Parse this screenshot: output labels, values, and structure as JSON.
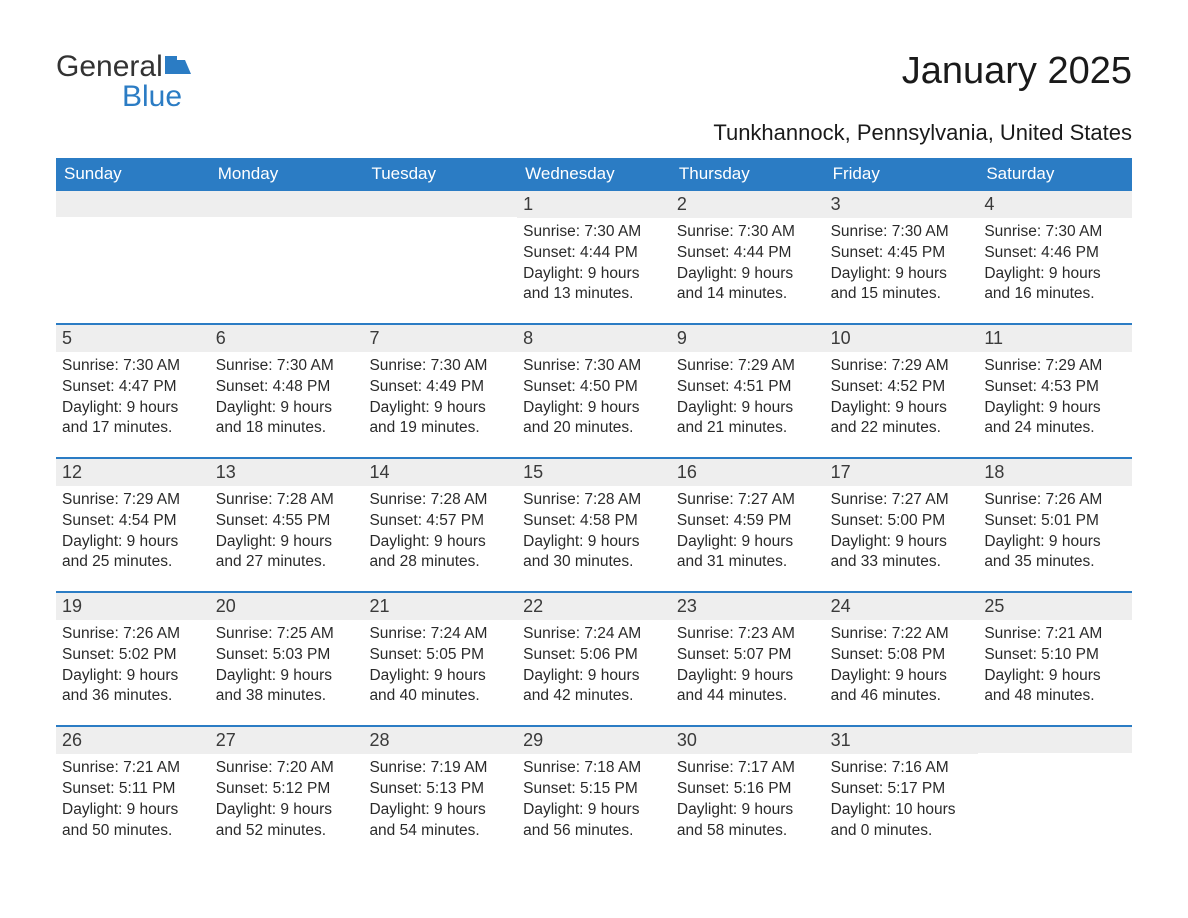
{
  "brand": {
    "part1": "General",
    "part2": "Blue"
  },
  "title": "January 2025",
  "subtitle": "Tunkhannock, Pennsylvania, United States",
  "colors": {
    "accent": "#2b7cc4",
    "header_text": "#ffffff",
    "daynum_bg": "#eeeeee",
    "text": "#2a2a2a",
    "background": "#ffffff"
  },
  "typography": {
    "title_fontsize": 38,
    "subtitle_fontsize": 22,
    "header_fontsize": 17,
    "daynum_fontsize": 18,
    "body_fontsize": 15.5
  },
  "calendar": {
    "type": "calendar-grid",
    "columns": 7,
    "day_names": [
      "Sunday",
      "Monday",
      "Tuesday",
      "Wednesday",
      "Thursday",
      "Friday",
      "Saturday"
    ],
    "weeks": [
      [
        {
          "day": "",
          "sunrise": "",
          "sunset": "",
          "daylight1": "",
          "daylight2": ""
        },
        {
          "day": "",
          "sunrise": "",
          "sunset": "",
          "daylight1": "",
          "daylight2": ""
        },
        {
          "day": "",
          "sunrise": "",
          "sunset": "",
          "daylight1": "",
          "daylight2": ""
        },
        {
          "day": "1",
          "sunrise": "Sunrise: 7:30 AM",
          "sunset": "Sunset: 4:44 PM",
          "daylight1": "Daylight: 9 hours",
          "daylight2": "and 13 minutes."
        },
        {
          "day": "2",
          "sunrise": "Sunrise: 7:30 AM",
          "sunset": "Sunset: 4:44 PM",
          "daylight1": "Daylight: 9 hours",
          "daylight2": "and 14 minutes."
        },
        {
          "day": "3",
          "sunrise": "Sunrise: 7:30 AM",
          "sunset": "Sunset: 4:45 PM",
          "daylight1": "Daylight: 9 hours",
          "daylight2": "and 15 minutes."
        },
        {
          "day": "4",
          "sunrise": "Sunrise: 7:30 AM",
          "sunset": "Sunset: 4:46 PM",
          "daylight1": "Daylight: 9 hours",
          "daylight2": "and 16 minutes."
        }
      ],
      [
        {
          "day": "5",
          "sunrise": "Sunrise: 7:30 AM",
          "sunset": "Sunset: 4:47 PM",
          "daylight1": "Daylight: 9 hours",
          "daylight2": "and 17 minutes."
        },
        {
          "day": "6",
          "sunrise": "Sunrise: 7:30 AM",
          "sunset": "Sunset: 4:48 PM",
          "daylight1": "Daylight: 9 hours",
          "daylight2": "and 18 minutes."
        },
        {
          "day": "7",
          "sunrise": "Sunrise: 7:30 AM",
          "sunset": "Sunset: 4:49 PM",
          "daylight1": "Daylight: 9 hours",
          "daylight2": "and 19 minutes."
        },
        {
          "day": "8",
          "sunrise": "Sunrise: 7:30 AM",
          "sunset": "Sunset: 4:50 PM",
          "daylight1": "Daylight: 9 hours",
          "daylight2": "and 20 minutes."
        },
        {
          "day": "9",
          "sunrise": "Sunrise: 7:29 AM",
          "sunset": "Sunset: 4:51 PM",
          "daylight1": "Daylight: 9 hours",
          "daylight2": "and 21 minutes."
        },
        {
          "day": "10",
          "sunrise": "Sunrise: 7:29 AM",
          "sunset": "Sunset: 4:52 PM",
          "daylight1": "Daylight: 9 hours",
          "daylight2": "and 22 minutes."
        },
        {
          "day": "11",
          "sunrise": "Sunrise: 7:29 AM",
          "sunset": "Sunset: 4:53 PM",
          "daylight1": "Daylight: 9 hours",
          "daylight2": "and 24 minutes."
        }
      ],
      [
        {
          "day": "12",
          "sunrise": "Sunrise: 7:29 AM",
          "sunset": "Sunset: 4:54 PM",
          "daylight1": "Daylight: 9 hours",
          "daylight2": "and 25 minutes."
        },
        {
          "day": "13",
          "sunrise": "Sunrise: 7:28 AM",
          "sunset": "Sunset: 4:55 PM",
          "daylight1": "Daylight: 9 hours",
          "daylight2": "and 27 minutes."
        },
        {
          "day": "14",
          "sunrise": "Sunrise: 7:28 AM",
          "sunset": "Sunset: 4:57 PM",
          "daylight1": "Daylight: 9 hours",
          "daylight2": "and 28 minutes."
        },
        {
          "day": "15",
          "sunrise": "Sunrise: 7:28 AM",
          "sunset": "Sunset: 4:58 PM",
          "daylight1": "Daylight: 9 hours",
          "daylight2": "and 30 minutes."
        },
        {
          "day": "16",
          "sunrise": "Sunrise: 7:27 AM",
          "sunset": "Sunset: 4:59 PM",
          "daylight1": "Daylight: 9 hours",
          "daylight2": "and 31 minutes."
        },
        {
          "day": "17",
          "sunrise": "Sunrise: 7:27 AM",
          "sunset": "Sunset: 5:00 PM",
          "daylight1": "Daylight: 9 hours",
          "daylight2": "and 33 minutes."
        },
        {
          "day": "18",
          "sunrise": "Sunrise: 7:26 AM",
          "sunset": "Sunset: 5:01 PM",
          "daylight1": "Daylight: 9 hours",
          "daylight2": "and 35 minutes."
        }
      ],
      [
        {
          "day": "19",
          "sunrise": "Sunrise: 7:26 AM",
          "sunset": "Sunset: 5:02 PM",
          "daylight1": "Daylight: 9 hours",
          "daylight2": "and 36 minutes."
        },
        {
          "day": "20",
          "sunrise": "Sunrise: 7:25 AM",
          "sunset": "Sunset: 5:03 PM",
          "daylight1": "Daylight: 9 hours",
          "daylight2": "and 38 minutes."
        },
        {
          "day": "21",
          "sunrise": "Sunrise: 7:24 AM",
          "sunset": "Sunset: 5:05 PM",
          "daylight1": "Daylight: 9 hours",
          "daylight2": "and 40 minutes."
        },
        {
          "day": "22",
          "sunrise": "Sunrise: 7:24 AM",
          "sunset": "Sunset: 5:06 PM",
          "daylight1": "Daylight: 9 hours",
          "daylight2": "and 42 minutes."
        },
        {
          "day": "23",
          "sunrise": "Sunrise: 7:23 AM",
          "sunset": "Sunset: 5:07 PM",
          "daylight1": "Daylight: 9 hours",
          "daylight2": "and 44 minutes."
        },
        {
          "day": "24",
          "sunrise": "Sunrise: 7:22 AM",
          "sunset": "Sunset: 5:08 PM",
          "daylight1": "Daylight: 9 hours",
          "daylight2": "and 46 minutes."
        },
        {
          "day": "25",
          "sunrise": "Sunrise: 7:21 AM",
          "sunset": "Sunset: 5:10 PM",
          "daylight1": "Daylight: 9 hours",
          "daylight2": "and 48 minutes."
        }
      ],
      [
        {
          "day": "26",
          "sunrise": "Sunrise: 7:21 AM",
          "sunset": "Sunset: 5:11 PM",
          "daylight1": "Daylight: 9 hours",
          "daylight2": "and 50 minutes."
        },
        {
          "day": "27",
          "sunrise": "Sunrise: 7:20 AM",
          "sunset": "Sunset: 5:12 PM",
          "daylight1": "Daylight: 9 hours",
          "daylight2": "and 52 minutes."
        },
        {
          "day": "28",
          "sunrise": "Sunrise: 7:19 AM",
          "sunset": "Sunset: 5:13 PM",
          "daylight1": "Daylight: 9 hours",
          "daylight2": "and 54 minutes."
        },
        {
          "day": "29",
          "sunrise": "Sunrise: 7:18 AM",
          "sunset": "Sunset: 5:15 PM",
          "daylight1": "Daylight: 9 hours",
          "daylight2": "and 56 minutes."
        },
        {
          "day": "30",
          "sunrise": "Sunrise: 7:17 AM",
          "sunset": "Sunset: 5:16 PM",
          "daylight1": "Daylight: 9 hours",
          "daylight2": "and 58 minutes."
        },
        {
          "day": "31",
          "sunrise": "Sunrise: 7:16 AM",
          "sunset": "Sunset: 5:17 PM",
          "daylight1": "Daylight: 10 hours",
          "daylight2": "and 0 minutes."
        },
        {
          "day": "",
          "sunrise": "",
          "sunset": "",
          "daylight1": "",
          "daylight2": ""
        }
      ]
    ]
  }
}
